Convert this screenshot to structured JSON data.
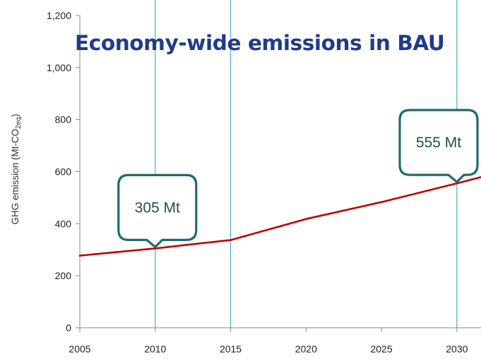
{
  "chart_data": {
    "type": "line",
    "title": "Economy-wide emissions in BAU",
    "ylabel": "GHG emission (Mt-CO2eq)",
    "ylabel_parts": {
      "main": "GHG emission (Mt-CO",
      "sub1": "2",
      "sub2": "eq",
      "close": ")"
    },
    "xlabel": "",
    "xlim": [
      2005,
      2031.6
    ],
    "ylim": [
      0,
      1200
    ],
    "x_ticks": [
      2005,
      2010,
      2015,
      2020,
      2025,
      2030
    ],
    "x_tick_labels": [
      "2005",
      "2010",
      "2015",
      "2020",
      "2025",
      "2030"
    ],
    "y_ticks": [
      0,
      200,
      400,
      600,
      800,
      1000,
      1200
    ],
    "y_tick_labels": [
      "0",
      "200",
      "400",
      "600",
      "800",
      "1,000",
      "1,200"
    ],
    "vertical_lines_x": [
      2010,
      2015,
      2030
    ],
    "series": [
      {
        "x": [
          2005,
          2010,
          2015,
          2020,
          2025,
          2030,
          2031.6
        ],
        "y": [
          277,
          305,
          337,
          418,
          483,
          555,
          579
        ]
      }
    ],
    "annotations": [
      {
        "text": "305 Mt",
        "x": 2010,
        "y": 305
      },
      {
        "text": "555 Mt",
        "x": 2030,
        "y": 555
      }
    ],
    "grid": false,
    "colors": {
      "line": "#c00000",
      "vlines": "#4bacc6",
      "callout_border": "#1f6b6b",
      "callout_text": "#1f4e5a",
      "axis": "#888888",
      "title": "#1f3b8c"
    }
  }
}
